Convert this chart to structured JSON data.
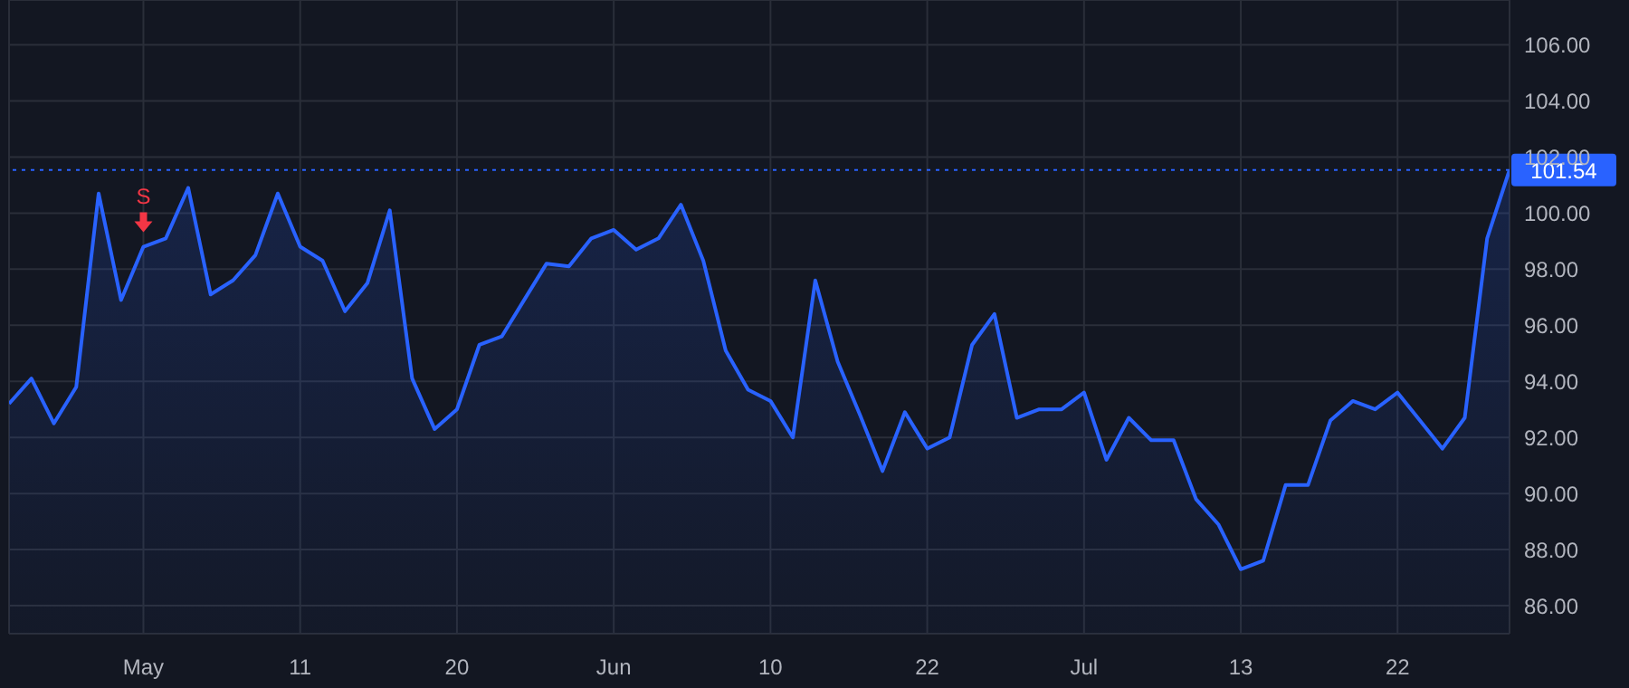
{
  "chart_data": {
    "type": "area",
    "categories": [
      null,
      null,
      null,
      null,
      null,
      null,
      "May",
      null,
      null,
      null,
      null,
      null,
      null,
      "11",
      null,
      null,
      null,
      null,
      null,
      null,
      "20",
      null,
      null,
      null,
      null,
      null,
      null,
      "Jun",
      null,
      null,
      null,
      null,
      null,
      null,
      "10",
      null,
      null,
      null,
      null,
      null,
      null,
      "22",
      null,
      null,
      null,
      null,
      null,
      null,
      "Jul",
      null,
      null,
      null,
      null,
      null,
      null,
      "13",
      null,
      null,
      null,
      null,
      null,
      null,
      "22",
      null,
      null,
      null,
      null,
      null
    ],
    "series": [
      {
        "color": "#2962ff",
        "values": [
          93.2,
          94.1,
          92.5,
          93.8,
          100.7,
          96.9,
          98.8,
          99.1,
          100.9,
          97.1,
          97.6,
          98.5,
          100.7,
          98.8,
          98.3,
          96.5,
          97.5,
          100.1,
          94.1,
          92.3,
          93.0,
          95.3,
          95.6,
          96.9,
          98.2,
          98.1,
          99.1,
          99.4,
          98.7,
          99.1,
          100.3,
          98.3,
          95.1,
          93.7,
          93.3,
          92.0,
          97.6,
          94.7,
          92.8,
          90.8,
          92.9,
          91.6,
          92.0,
          95.3,
          96.4,
          92.7,
          93.0,
          93.0,
          93.6,
          91.2,
          92.7,
          91.9,
          91.9,
          89.8,
          88.9,
          87.3,
          87.6,
          90.3,
          90.3,
          92.6,
          93.3,
          93.0,
          93.6,
          92.6,
          91.6,
          92.7,
          99.1,
          101.54
        ]
      }
    ],
    "ylim": [
      85,
      107.6
    ],
    "yticks": [
      {
        "value": 86,
        "label": "86.00"
      },
      {
        "value": 88,
        "label": "88.00"
      },
      {
        "value": 90,
        "label": "90.00"
      },
      {
        "value": 92,
        "label": "92.00"
      },
      {
        "value": 94,
        "label": "94.00"
      },
      {
        "value": 96,
        "label": "96.00"
      },
      {
        "value": 98,
        "label": "98.00"
      },
      {
        "value": 100,
        "label": "100.00"
      },
      {
        "value": 102,
        "label": "102.00"
      },
      {
        "value": 104,
        "label": "104.00"
      },
      {
        "value": 106,
        "label": "106.00"
      }
    ],
    "grid": true,
    "ref_lines": [
      {
        "axis": "y",
        "value": 101.54,
        "label": "101.54",
        "color": "#2962ff",
        "line_style": "dotted"
      }
    ],
    "annotations": [
      {
        "text": "S",
        "x": "May",
        "y": 98.8
      }
    ]
  }
}
